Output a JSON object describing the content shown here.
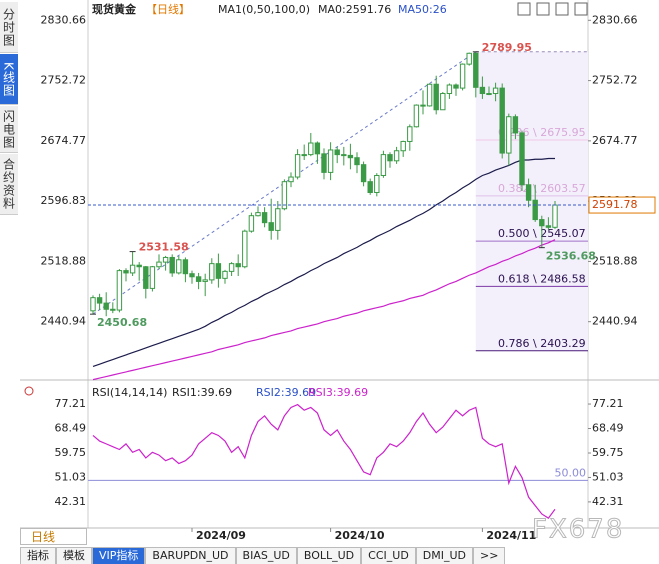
{
  "ui": {
    "side_tabs": [
      "分时图",
      "K线图",
      "闪电图",
      "合约资料"
    ],
    "period_button": "日线",
    "bottom_tabs": [
      "指标",
      "模板",
      "VIP指标",
      "BARUPDN_UD",
      "BIAS_UD",
      "BOLL_UD",
      "CCI_UD",
      "DMI_UD",
      ">>"
    ],
    "watermark": "FX678"
  },
  "chart_data": [
    {
      "type": "candlestick",
      "title": "现货黄金",
      "period": "【日线】",
      "legend": [
        "MA1(0,50,100,0)",
        "MA0:2591.76",
        "MA50:26"
      ],
      "categories": [
        null,
        null,
        null,
        null,
        null,
        null,
        null,
        null,
        null,
        null,
        null,
        null,
        null,
        null,
        null,
        "2024/09",
        null,
        null,
        null,
        null,
        null,
        null,
        null,
        null,
        null,
        null,
        null,
        null,
        null,
        null,
        null,
        null,
        null,
        null,
        null,
        null,
        "2024/10",
        null,
        null,
        null,
        null,
        null,
        null,
        null,
        null,
        null,
        null,
        null,
        null,
        null,
        null,
        null,
        null,
        null,
        null,
        null,
        null,
        null,
        null,
        "2024/11",
        null,
        null,
        null,
        null,
        null,
        null,
        null,
        null,
        null,
        null,
        null
      ],
      "open": [
        2455,
        2472,
        2465,
        2457,
        2456,
        2507,
        2504,
        2514,
        2512,
        2484,
        2512,
        2518,
        2524,
        2504,
        2521,
        2503,
        2499,
        2493,
        2495,
        2516,
        2497,
        2506,
        2516,
        2512,
        2558,
        2578,
        2582,
        2569,
        2559,
        2587,
        2622,
        2628,
        2657,
        2657,
        2672,
        2658,
        2634,
        2663,
        2657,
        2656,
        2653,
        2644,
        2622,
        2608,
        2630,
        2657,
        2649,
        2662,
        2674,
        2693,
        2721,
        2720,
        2748,
        2715,
        2736,
        2747,
        2743,
        2774,
        2788,
        2744,
        2736,
        2736,
        2743,
        2659,
        2706,
        2685,
        2618,
        2598,
        2573,
        2565,
        2563
      ],
      "high": [
        2475,
        2477,
        2479,
        2466,
        2509,
        2510,
        2531.58,
        2518,
        2513,
        2513,
        2528,
        2526,
        2528,
        2526,
        2524,
        2507,
        2504,
        2503,
        2523,
        2529,
        2508,
        2518,
        2528,
        2560,
        2582,
        2590,
        2589,
        2600,
        2597,
        2625,
        2634,
        2664,
        2670,
        2685,
        2674,
        2665,
        2673,
        2667,
        2667,
        2671,
        2660,
        2648,
        2626,
        2633,
        2662,
        2660,
        2667,
        2675,
        2696,
        2722,
        2740,
        2749,
        2759,
        2738,
        2749,
        2749,
        2775,
        2789,
        2789.95,
        2758,
        2745,
        2750,
        2749,
        2710,
        2709,
        2688,
        2626,
        2618,
        2578,
        2576,
        2597
      ],
      "low": [
        2450.68,
        2456,
        2448,
        2452,
        2453,
        2493,
        2500,
        2494,
        2471,
        2480,
        2509,
        2507,
        2499,
        2502,
        2492,
        2490,
        2483,
        2474,
        2490,
        2485,
        2490,
        2500,
        2500,
        2510,
        2556,
        2577,
        2563,
        2547,
        2547,
        2585,
        2615,
        2625,
        2650,
        2655,
        2645,
        2625,
        2624,
        2646,
        2643,
        2638,
        2633,
        2616,
        2605,
        2603,
        2627,
        2640,
        2645,
        2654,
        2662,
        2692,
        2709,
        2719,
        2709,
        2715,
        2729,
        2733,
        2740,
        2772,
        2731,
        2729,
        2734,
        2726,
        2652,
        2643,
        2677,
        2610,
        2589,
        2570,
        2536.68,
        2560,
        2561
      ],
      "close": [
        2472,
        2465,
        2457,
        2456,
        2507,
        2504,
        2514,
        2512,
        2484,
        2512,
        2518,
        2524,
        2504,
        2521,
        2503,
        2499,
        2493,
        2495,
        2516,
        2497,
        2506,
        2516,
        2512,
        2558,
        2578,
        2582,
        2569,
        2559,
        2587,
        2622,
        2628,
        2657,
        2657,
        2672,
        2658,
        2634,
        2663,
        2657,
        2656,
        2653,
        2644,
        2622,
        2608,
        2630,
        2657,
        2649,
        2662,
        2674,
        2693,
        2721,
        2720,
        2748,
        2715,
        2736,
        2747,
        2743,
        2774,
        2788,
        2744,
        2736,
        2736,
        2743,
        2659,
        2706,
        2685,
        2618,
        2598,
        2573,
        2565,
        2563,
        2591.78
      ],
      "color": "#3b9a46",
      "series": [
        {
          "color": "#1c1c4c",
          "values": [
            2383,
            2386,
            2389,
            2392,
            2395,
            2398,
            2401,
            2404,
            2407,
            2410,
            2413,
            2416,
            2419,
            2422,
            2425,
            2428,
            2431,
            2435,
            2440,
            2444,
            2449,
            2453,
            2458,
            2462,
            2467,
            2471,
            2476,
            2480,
            2484,
            2489,
            2493,
            2498,
            2502,
            2507,
            2511,
            2516,
            2520,
            2524,
            2529,
            2533,
            2537,
            2542,
            2546,
            2551,
            2555,
            2559,
            2564,
            2568,
            2572,
            2577,
            2581,
            2586,
            2592,
            2597,
            2603,
            2608,
            2614,
            2619,
            2625,
            2630,
            2633,
            2637,
            2640,
            2643,
            2647,
            2650,
            2650,
            2651,
            2651,
            2652,
            2652
          ]
        },
        {
          "color": "#cc22cc",
          "values": [
            2366,
            2368,
            2370,
            2372,
            2374,
            2376,
            2378,
            2380,
            2382,
            2384,
            2386,
            2388,
            2390,
            2392,
            2394,
            2396,
            2398,
            2400,
            2402,
            2405,
            2407,
            2409,
            2411,
            2414,
            2416,
            2418,
            2420,
            2423,
            2425,
            2427,
            2429,
            2432,
            2434,
            2436,
            2438,
            2441,
            2443,
            2445,
            2448,
            2450,
            2452,
            2455,
            2457,
            2459,
            2461,
            2464,
            2466,
            2468,
            2471,
            2473,
            2475,
            2479,
            2482,
            2486,
            2490,
            2493,
            2497,
            2501,
            2504,
            2508,
            2512,
            2515,
            2519,
            2522,
            2526,
            2529,
            2533,
            2536,
            2540,
            2543,
            2547
          ]
        }
      ],
      "high_labels": [
        2531.58,
        2789.95
      ],
      "low_labels": [
        2450.68,
        2536.68
      ],
      "high_label_color": "#d9534f",
      "low_label_color": "#4f9a5f",
      "fib_levels": [
        {
          "value": 2675.95,
          "label": "0.236 \\ 2675.95",
          "color": "#f0c8e8"
        },
        {
          "value": 2603.57,
          "label": "0.382 \\ 2603.57",
          "color": "#e0c0e8"
        },
        {
          "value": 2545.07,
          "label": "0.500 \\ 2545.07",
          "color": "#a070c8"
        },
        {
          "value": 2486.58,
          "label": "0.618 \\ 2486.58",
          "color": "#7a3aa8"
        },
        {
          "value": 2403.29,
          "label": "0.786 \\ 2403.29",
          "color": "#4a1a7a"
        }
      ],
      "ylim": [
        2372,
        2844
      ],
      "yticks": [
        2440.94,
        2518.88,
        2596.83,
        2674.77,
        2752.72,
        2830.66
      ]
    },
    {
      "type": "line",
      "legend": [
        {
          "text": "RSI(14,14,14)",
          "color": "#222222"
        },
        {
          "text": "RSI1:39.69",
          "color": "#222222"
        },
        {
          "text": "RSI2:39.69",
          "color": "#2a50c8"
        },
        {
          "text": "RSI3:39.69",
          "color": "#cc22cc"
        }
      ],
      "color": "#cc22cc",
      "values": [
        66,
        64,
        63,
        62,
        61,
        63,
        60,
        61,
        58,
        60,
        59,
        57,
        58,
        56,
        57,
        59,
        63,
        65,
        67,
        66,
        64,
        60,
        62,
        58,
        66,
        71,
        73,
        70,
        68,
        73,
        76,
        77,
        75,
        76,
        74,
        68,
        66,
        68,
        64,
        61,
        57,
        53,
        52,
        58,
        60,
        63,
        62,
        64,
        67,
        71,
        74,
        70,
        67,
        69,
        72,
        75,
        73,
        75,
        76,
        65,
        63,
        62,
        63,
        49,
        55,
        51,
        44,
        41,
        38,
        36.5,
        39.69
      ],
      "reference": {
        "value": 50,
        "label": "50.00",
        "color": "#8c8cd8"
      },
      "ylim": [
        33,
        84
      ],
      "yticks": [
        42.31,
        51.03,
        59.75,
        68.49,
        77.21
      ]
    }
  ]
}
